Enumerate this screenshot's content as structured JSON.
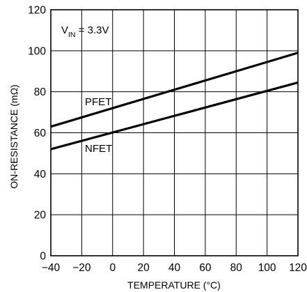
{
  "chart_data": {
    "type": "line",
    "title": "",
    "xlabel": "TEMPERATURE (°C)",
    "ylabel": "ON-RESISTANCE (mΩ)",
    "xlim": [
      -40,
      120
    ],
    "ylim": [
      0,
      120
    ],
    "x_ticks": [
      "−40",
      "−20",
      "0",
      "20",
      "40",
      "60",
      "80",
      "100",
      "120"
    ],
    "y_ticks": [
      "0",
      "20",
      "40",
      "60",
      "80",
      "100",
      "120"
    ],
    "grid": true,
    "series": [
      {
        "name": "PFET",
        "x": [
          -40,
          120
        ],
        "y": [
          63,
          99
        ]
      },
      {
        "name": "NFET",
        "x": [
          -40,
          120
        ],
        "y": [
          52,
          84.5
        ]
      }
    ],
    "annotation": {
      "main": "V",
      "subscript": "IN",
      "suffix": " = 3.3V"
    }
  }
}
